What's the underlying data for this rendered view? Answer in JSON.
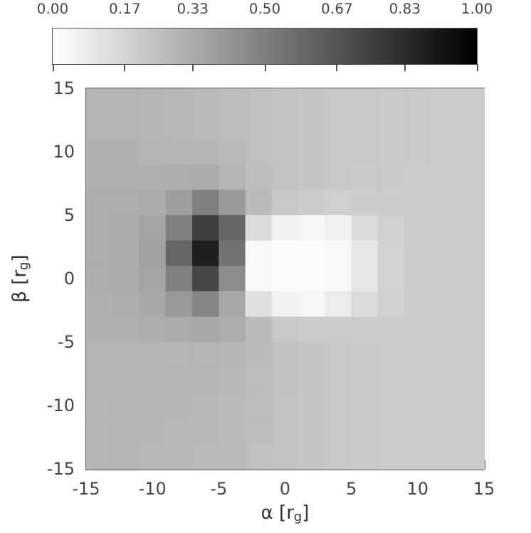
{
  "chart_data": {
    "type": "heatmap",
    "xlabel": "α [r$_{g}$]",
    "ylabel": "β [r$_{g}$]",
    "xlim": [
      -15,
      15
    ],
    "ylim": [
      -15,
      15
    ],
    "xticks": [
      -15,
      -10,
      -5,
      0,
      5,
      10,
      15
    ],
    "yticks": [
      -15,
      -10,
      -5,
      0,
      5,
      10,
      15
    ],
    "clim": [
      0,
      1
    ],
    "cticks": [
      {
        "value": 0,
        "label": "0.00"
      },
      0.17,
      0.33,
      {
        "value": 0.5,
        "label": "0.50"
      },
      0.67,
      0.83,
      {
        "value": 1,
        "label": "1.00"
      }
    ],
    "cells": [
      [
        0.3,
        0.3,
        0.29,
        0.28,
        0.27,
        0.26,
        0.25,
        0.24,
        0.23,
        0.22,
        0.22,
        0.21,
        0.21,
        0.2,
        0.2
      ],
      [
        0.3,
        0.3,
        0.29,
        0.28,
        0.27,
        0.26,
        0.25,
        0.24,
        0.23,
        0.22,
        0.22,
        0.21,
        0.21,
        0.2,
        0.2
      ],
      [
        0.31,
        0.31,
        0.3,
        0.3,
        0.29,
        0.27,
        0.25,
        0.24,
        0.23,
        0.22,
        0.22,
        0.21,
        0.21,
        0.2,
        0.2
      ],
      [
        0.31,
        0.31,
        0.31,
        0.32,
        0.33,
        0.3,
        0.26,
        0.24,
        0.23,
        0.22,
        0.21,
        0.21,
        0.2,
        0.2,
        0.2
      ],
      [
        0.32,
        0.32,
        0.33,
        0.38,
        0.5,
        0.4,
        0.27,
        0.22,
        0.2,
        0.19,
        0.2,
        0.2,
        0.2,
        0.2,
        0.2
      ],
      [
        0.32,
        0.33,
        0.36,
        0.5,
        0.75,
        0.6,
        0.15,
        0.05,
        0.04,
        0.06,
        0.15,
        0.19,
        0.2,
        0.2,
        0.2
      ],
      [
        0.32,
        0.33,
        0.37,
        0.6,
        0.88,
        0.55,
        0.03,
        0.02,
        0.02,
        0.03,
        0.1,
        0.18,
        0.2,
        0.2,
        0.2
      ],
      [
        0.32,
        0.33,
        0.36,
        0.5,
        0.72,
        0.45,
        0.03,
        0.02,
        0.02,
        0.03,
        0.1,
        0.18,
        0.2,
        0.2,
        0.2
      ],
      [
        0.31,
        0.32,
        0.34,
        0.4,
        0.48,
        0.35,
        0.12,
        0.05,
        0.04,
        0.08,
        0.15,
        0.19,
        0.2,
        0.2,
        0.2
      ],
      [
        0.31,
        0.31,
        0.32,
        0.33,
        0.34,
        0.32,
        0.27,
        0.22,
        0.2,
        0.2,
        0.2,
        0.2,
        0.2,
        0.2,
        0.2
      ],
      [
        0.3,
        0.3,
        0.3,
        0.3,
        0.3,
        0.29,
        0.27,
        0.25,
        0.23,
        0.22,
        0.21,
        0.2,
        0.2,
        0.2,
        0.2
      ],
      [
        0.3,
        0.3,
        0.3,
        0.29,
        0.29,
        0.28,
        0.26,
        0.25,
        0.23,
        0.22,
        0.21,
        0.2,
        0.2,
        0.2,
        0.2
      ],
      [
        0.29,
        0.29,
        0.29,
        0.29,
        0.28,
        0.27,
        0.26,
        0.24,
        0.23,
        0.22,
        0.21,
        0.2,
        0.2,
        0.2,
        0.2
      ],
      [
        0.29,
        0.29,
        0.29,
        0.28,
        0.28,
        0.27,
        0.26,
        0.24,
        0.23,
        0.22,
        0.21,
        0.2,
        0.2,
        0.2,
        0.2
      ],
      [
        0.29,
        0.29,
        0.28,
        0.28,
        0.27,
        0.27,
        0.25,
        0.24,
        0.23,
        0.22,
        0.21,
        0.2,
        0.2,
        0.2,
        0.2
      ]
    ],
    "grid": false
  }
}
